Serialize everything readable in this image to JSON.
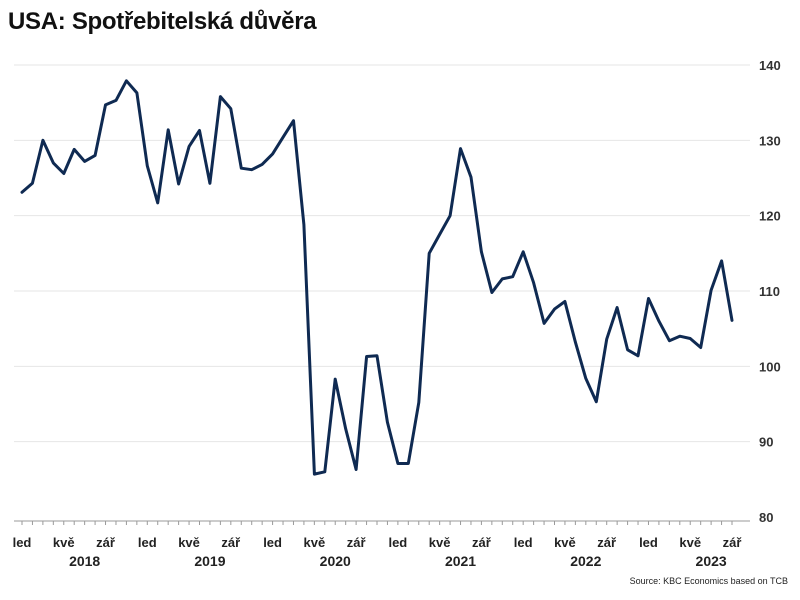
{
  "chart_data": {
    "type": "line",
    "title": "USA: Spotřebitelská důvěra",
    "source": "Source: KBC Economics based on TCB",
    "y_axis_position": "right",
    "ylim": [
      80,
      140
    ],
    "y_ticks": [
      80,
      90,
      100,
      110,
      120,
      130,
      140
    ],
    "grid": "horizontal",
    "line_color": "#0f2a52",
    "x_ticks": [
      {
        "label": "led",
        "month": 0
      },
      {
        "label": "kvě",
        "month": 4
      },
      {
        "label": "zář",
        "month": 8
      },
      {
        "label": "led",
        "month": 12
      },
      {
        "label": "kvě",
        "month": 16
      },
      {
        "label": "zář",
        "month": 20
      },
      {
        "label": "led",
        "month": 24
      },
      {
        "label": "kvě",
        "month": 28
      },
      {
        "label": "zář",
        "month": 32
      },
      {
        "label": "led",
        "month": 36
      },
      {
        "label": "kvě",
        "month": 40
      },
      {
        "label": "zář",
        "month": 44
      },
      {
        "label": "led",
        "month": 48
      },
      {
        "label": "kvě",
        "month": 52
      },
      {
        "label": "zář",
        "month": 56
      },
      {
        "label": "led",
        "month": 60
      },
      {
        "label": "kvě",
        "month": 64
      },
      {
        "label": "zář",
        "month": 68
      }
    ],
    "years": [
      {
        "label": "2018",
        "month": 6
      },
      {
        "label": "2019",
        "month": 18
      },
      {
        "label": "2020",
        "month": 30
      },
      {
        "label": "2021",
        "month": 42
      },
      {
        "label": "2022",
        "month": 54
      },
      {
        "label": "2023",
        "month": 66
      }
    ],
    "x": [
      "2018-01",
      "2018-02",
      "2018-03",
      "2018-04",
      "2018-05",
      "2018-06",
      "2018-07",
      "2018-08",
      "2018-09",
      "2018-10",
      "2018-11",
      "2018-12",
      "2019-01",
      "2019-02",
      "2019-03",
      "2019-04",
      "2019-05",
      "2019-06",
      "2019-07",
      "2019-08",
      "2019-09",
      "2019-10",
      "2019-11",
      "2019-12",
      "2020-01",
      "2020-02",
      "2020-03",
      "2020-04",
      "2020-05",
      "2020-06",
      "2020-07",
      "2020-08",
      "2020-09",
      "2020-10",
      "2020-11",
      "2020-12",
      "2021-01",
      "2021-02",
      "2021-03",
      "2021-04",
      "2021-05",
      "2021-06",
      "2021-07",
      "2021-08",
      "2021-09",
      "2021-10",
      "2021-11",
      "2021-12",
      "2022-01",
      "2022-02",
      "2022-03",
      "2022-04",
      "2022-05",
      "2022-06",
      "2022-07",
      "2022-08",
      "2022-09",
      "2022-10",
      "2022-11",
      "2022-12",
      "2023-01",
      "2023-02",
      "2023-03",
      "2023-04",
      "2023-05",
      "2023-06",
      "2023-07",
      "2023-08",
      "2023-09"
    ],
    "series": [
      {
        "values": [
          123.1,
          124.3,
          130.0,
          127.0,
          125.6,
          128.8,
          127.2,
          128.0,
          134.7,
          135.3,
          137.9,
          136.3,
          126.6,
          121.7,
          131.4,
          124.2,
          129.2,
          131.3,
          124.3,
          135.8,
          134.2,
          126.3,
          126.1,
          126.8,
          128.2,
          130.4,
          132.6,
          118.8,
          85.7,
          86.0,
          98.3,
          91.7,
          86.3,
          101.3,
          101.4,
          92.6,
          87.1,
          87.1,
          95.2,
          115.0,
          117.5,
          120.0,
          128.9,
          125.1,
          115.2,
          109.8,
          111.6,
          111.9,
          115.2,
          111.1,
          105.7,
          107.6,
          108.6,
          103.2,
          98.4,
          95.3,
          103.6,
          107.8,
          102.2,
          101.4,
          109.0,
          106.0,
          103.4,
          104.0,
          103.7,
          102.5,
          110.1,
          114.0,
          106.1
        ]
      }
    ]
  }
}
